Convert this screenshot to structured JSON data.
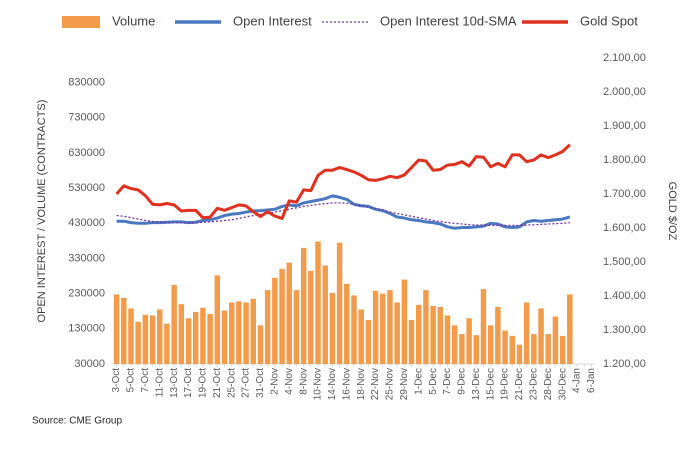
{
  "chart_data": {
    "type": "combo",
    "legend": "top",
    "grid": false,
    "y_label": "OPEN INTEREST / VOLUME (CONTRACTS)",
    "y2_label": "GOLD $/OZ",
    "source": "Source: CME Group",
    "categories": [
      "3-Oct",
      null,
      "5-Oct",
      null,
      "7-Oct",
      null,
      "11-Oct",
      null,
      "13-Oct",
      null,
      "17-Oct",
      null,
      "19-Oct",
      null,
      "21-Oct",
      null,
      "25-Oct",
      null,
      "27-Oct",
      null,
      "31-Oct",
      null,
      "2-Nov",
      null,
      "4-Nov",
      null,
      "8-Nov",
      null,
      "10-Nov",
      null,
      "14-Nov",
      null,
      "16-Nov",
      null,
      "18-Nov",
      null,
      "22-Nov",
      null,
      "25-Nov",
      null,
      "29-Nov",
      null,
      "1-Dec",
      null,
      "5-Dec",
      null,
      "7-Dec",
      null,
      "9-Dec",
      null,
      "13-Dec",
      null,
      "15-Dec",
      null,
      "19-Dec",
      null,
      "21-Dec",
      null,
      "23-Dec",
      null,
      "28-Dec",
      null,
      "30-Dec",
      null,
      "4-Jan",
      null,
      "6-Jan"
    ],
    "ylim": [
      30000,
      900000
    ],
    "yticks": [
      30000,
      130000,
      230000,
      330000,
      430000,
      530000,
      630000,
      730000,
      830000
    ],
    "y2lim": [
      1200,
      2100
    ],
    "y2ticks": [
      {
        "value": 1200,
        "label": "1.200,00"
      },
      {
        "value": 1300,
        "label": "1.300,00"
      },
      {
        "value": 1400,
        "label": "1.400,00"
      },
      {
        "value": 1500,
        "label": "1.500,00"
      },
      {
        "value": 1600,
        "label": "1.600,00"
      },
      {
        "value": 1700,
        "label": "1.700,00"
      },
      {
        "value": 1800,
        "label": "1.800,00"
      },
      {
        "value": 1900,
        "label": "1.900,00"
      },
      {
        "value": 2000,
        "label": "2.000,00"
      },
      {
        "value": 2100,
        "label": "2.100,00"
      }
    ],
    "series": [
      {
        "name": "Volume",
        "type": "bar",
        "color": "#f29b4b",
        "values": [
          228000,
          218000,
          188000,
          150000,
          170000,
          168000,
          185000,
          145000,
          255000,
          200000,
          160000,
          178000,
          190000,
          172000,
          282000,
          182000,
          205000,
          208000,
          205000,
          215000,
          140000,
          240000,
          275000,
          300000,
          318000,
          240000,
          360000,
          295000,
          378000,
          310000,
          232000,
          375000,
          258000,
          225000,
          185000,
          155000,
          238000,
          230000,
          240000,
          205000,
          270000,
          155000,
          198000,
          240000,
          195000,
          192000,
          168000,
          140000,
          115000,
          160000,
          112000,
          243000,
          140000,
          192000,
          125000,
          110000,
          85000,
          205000,
          115000,
          188000,
          115000,
          165000,
          110000,
          228000,
          null,
          null,
          null
        ]
      },
      {
        "name": "Open Interest",
        "type": "line",
        "color": "#4a78c0",
        "values": [
          436000,
          436000,
          432000,
          430000,
          430000,
          432000,
          432000,
          433000,
          434000,
          434000,
          432000,
          433000,
          438000,
          440000,
          445000,
          452000,
          456000,
          458000,
          462000,
          465000,
          466000,
          468000,
          470000,
          478000,
          482000,
          480000,
          488000,
          492000,
          496000,
          500000,
          508000,
          504000,
          498000,
          484000,
          480000,
          478000,
          470000,
          466000,
          458000,
          448000,
          445000,
          440000,
          438000,
          434000,
          432000,
          428000,
          420000,
          416000,
          418000,
          418000,
          420000,
          422000,
          430000,
          428000,
          420000,
          418000,
          420000,
          434000,
          438000,
          436000,
          438000,
          440000,
          442000,
          448000,
          null,
          null,
          null
        ]
      },
      {
        "name": "Open Interest 10d-SMA",
        "type": "line",
        "style": "dotted",
        "color": "#7030a0",
        "values": [
          452000,
          450000,
          446000,
          442000,
          438000,
          435000,
          433000,
          432000,
          432000,
          432000,
          431000,
          432000,
          433000,
          434000,
          436000,
          438000,
          440000,
          444000,
          448000,
          452000,
          455000,
          458000,
          462000,
          466000,
          470000,
          474000,
          478000,
          481000,
          484000,
          486000,
          488000,
          488000,
          487000,
          484000,
          480000,
          476000,
          472000,
          468000,
          462000,
          458000,
          454000,
          450000,
          446000,
          442000,
          438000,
          435000,
          432000,
          430000,
          428000,
          426000,
          425000,
          425000,
          424000,
          424000,
          424000,
          424000,
          424000,
          425000,
          426000,
          427000,
          428000,
          429000,
          430000,
          432000,
          null,
          null,
          null
        ]
      },
      {
        "name": "Gold Spot",
        "type": "line",
        "axis": "y2",
        "color": "#e0301e",
        "values": [
          1700,
          1724,
          1716,
          1712,
          1695,
          1670,
          1668,
          1672,
          1668,
          1650,
          1652,
          1652,
          1630,
          1632,
          1658,
          1652,
          1660,
          1668,
          1665,
          1648,
          1634,
          1648,
          1635,
          1628,
          1680,
          1676,
          1712,
          1710,
          1755,
          1770,
          1770,
          1778,
          1772,
          1765,
          1755,
          1742,
          1740,
          1745,
          1752,
          1748,
          1756,
          1778,
          1800,
          1797,
          1770,
          1772,
          1785,
          1787,
          1795,
          1782,
          1810,
          1808,
          1780,
          1790,
          1780,
          1815,
          1815,
          1795,
          1800,
          1815,
          1807,
          1815,
          1825,
          1845,
          null,
          null,
          null
        ]
      }
    ]
  }
}
